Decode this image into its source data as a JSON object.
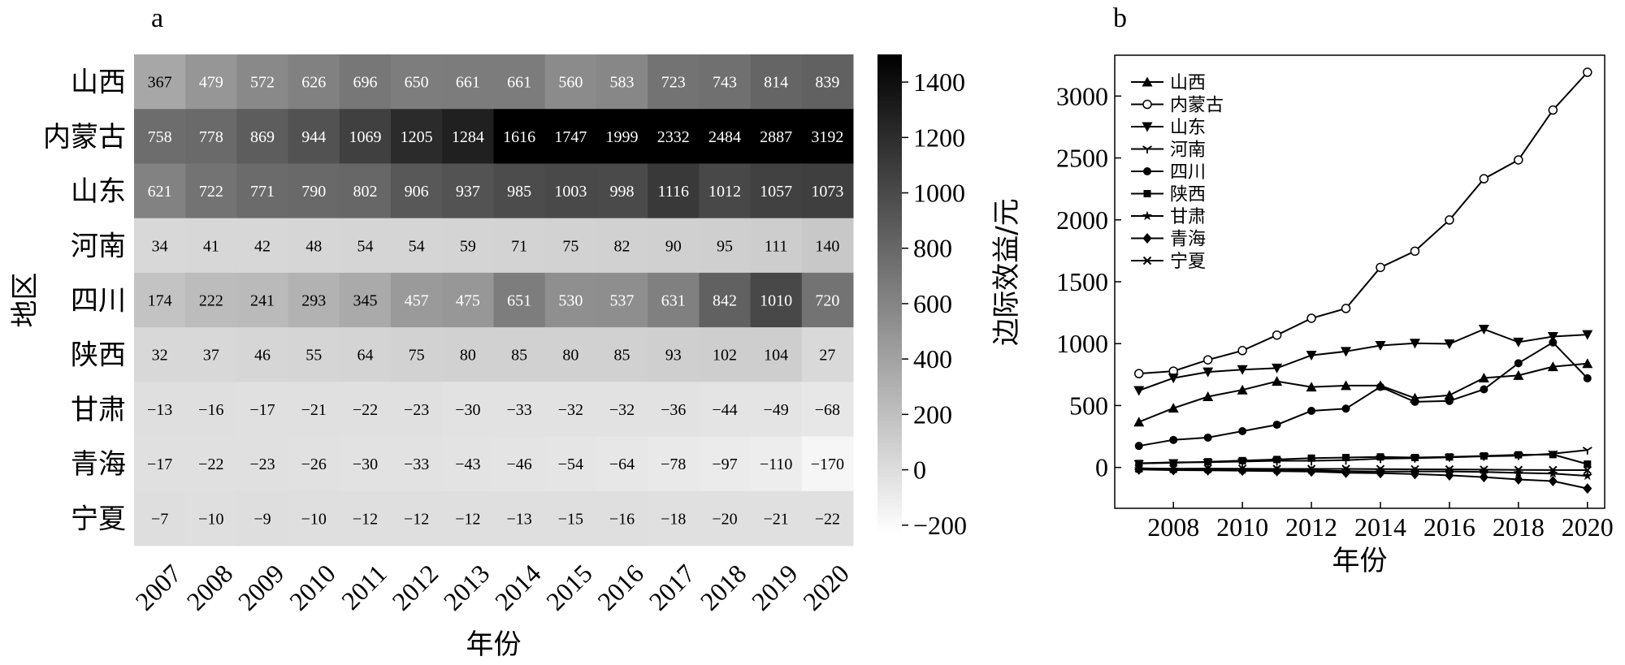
{
  "chart_data": [
    {
      "panel": "a",
      "type": "heatmap",
      "xlabel": "年份",
      "ylabel": "地区",
      "rows": [
        "山西",
        "内蒙古",
        "山东",
        "河南",
        "四川",
        "陕西",
        "甘肃",
        "青海",
        "宁夏"
      ],
      "columns": [
        "2007",
        "2008",
        "2009",
        "2010",
        "2011",
        "2012",
        "2013",
        "2014",
        "2015",
        "2016",
        "2017",
        "2018",
        "2019",
        "2020"
      ],
      "values": [
        [
          367,
          479,
          572,
          626,
          696,
          650,
          661,
          661,
          560,
          583,
          723,
          743,
          814,
          839
        ],
        [
          758,
          778,
          869,
          944,
          1069,
          1205,
          1284,
          1616,
          1747,
          1999,
          2332,
          2484,
          2887,
          3192
        ],
        [
          621,
          722,
          771,
          790,
          802,
          906,
          937,
          985,
          1003,
          998,
          1116,
          1012,
          1057,
          1073
        ],
        [
          34,
          41,
          42,
          48,
          54,
          54,
          59,
          71,
          75,
          82,
          90,
          95,
          111,
          140
        ],
        [
          174,
          222,
          241,
          293,
          345,
          457,
          475,
          651,
          530,
          537,
          631,
          842,
          1010,
          720
        ],
        [
          32,
          37,
          46,
          55,
          64,
          75,
          80,
          85,
          80,
          85,
          93,
          102,
          104,
          27
        ],
        [
          -13,
          -16,
          -17,
          -21,
          -22,
          -23,
          -30,
          -33,
          -32,
          -32,
          -36,
          -44,
          -49,
          -68
        ],
        [
          -17,
          -22,
          -23,
          -26,
          -30,
          -33,
          -43,
          -46,
          -54,
          -64,
          -78,
          -97,
          -110,
          -170
        ],
        [
          -7,
          -10,
          -9,
          -10,
          -12,
          -12,
          -12,
          -13,
          -15,
          -16,
          -18,
          -20,
          -21,
          -22
        ]
      ],
      "colorbar": {
        "range": [
          -230,
          1500
        ],
        "ticks": [
          1400,
          1200,
          1000,
          800,
          600,
          400,
          200,
          0,
          -200
        ],
        "tick_labels": [
          "1400",
          "1200",
          "1000",
          "800",
          "600",
          "400",
          "200",
          "0",
          "−200"
        ],
        "colormap": "white-to-black"
      }
    },
    {
      "panel": "b",
      "type": "line",
      "xlabel": "年份",
      "ylabel": "边际效益/元",
      "x": [
        2007,
        2008,
        2009,
        2010,
        2011,
        2012,
        2013,
        2014,
        2015,
        2016,
        2017,
        2018,
        2019,
        2020
      ],
      "xlim": [
        2006.3,
        2020.5
      ],
      "ylim": [
        -330,
        3330
      ],
      "xticks": [
        "2008",
        "2010",
        "2012",
        "2014",
        "2016",
        "2018",
        "2020"
      ],
      "yticks": [
        "0",
        "500",
        "1000",
        "1500",
        "2000",
        "2500",
        "3000"
      ],
      "legend_position": "top-left",
      "series": [
        {
          "name": "山西",
          "marker": "triangle-up",
          "values": [
            367,
            479,
            572,
            626,
            696,
            650,
            661,
            661,
            560,
            583,
            723,
            743,
            814,
            839
          ]
        },
        {
          "name": "内蒙古",
          "marker": "circle-open",
          "values": [
            758,
            778,
            869,
            944,
            1069,
            1205,
            1284,
            1616,
            1747,
            1999,
            2332,
            2484,
            2887,
            3192
          ]
        },
        {
          "name": "山东",
          "marker": "triangle-down",
          "values": [
            621,
            722,
            771,
            790,
            802,
            906,
            937,
            985,
            1003,
            998,
            1116,
            1012,
            1057,
            1073
          ]
        },
        {
          "name": "河南",
          "marker": "tri-down",
          "values": [
            34,
            41,
            42,
            48,
            54,
            54,
            59,
            71,
            75,
            82,
            90,
            95,
            111,
            140
          ]
        },
        {
          "name": "四川",
          "marker": "circle",
          "values": [
            174,
            222,
            241,
            293,
            345,
            457,
            475,
            651,
            530,
            537,
            631,
            842,
            1010,
            720
          ]
        },
        {
          "name": "陕西",
          "marker": "square",
          "values": [
            32,
            37,
            46,
            55,
            64,
            75,
            80,
            85,
            80,
            85,
            93,
            102,
            104,
            27
          ]
        },
        {
          "name": "甘肃",
          "marker": "star",
          "values": [
            -13,
            -16,
            -17,
            -21,
            -22,
            -23,
            -30,
            -33,
            -32,
            -32,
            -36,
            -44,
            -49,
            -68
          ]
        },
        {
          "name": "青海",
          "marker": "diamond",
          "values": [
            -17,
            -22,
            -23,
            -26,
            -30,
            -33,
            -43,
            -46,
            -54,
            -64,
            -78,
            -97,
            -110,
            -170
          ]
        },
        {
          "name": "宁夏",
          "marker": "x",
          "values": [
            -7,
            -10,
            -9,
            -10,
            -12,
            -12,
            -12,
            -13,
            -15,
            -16,
            -18,
            -20,
            -21,
            -22
          ]
        }
      ]
    }
  ],
  "panel_labels": [
    "a",
    "b"
  ]
}
